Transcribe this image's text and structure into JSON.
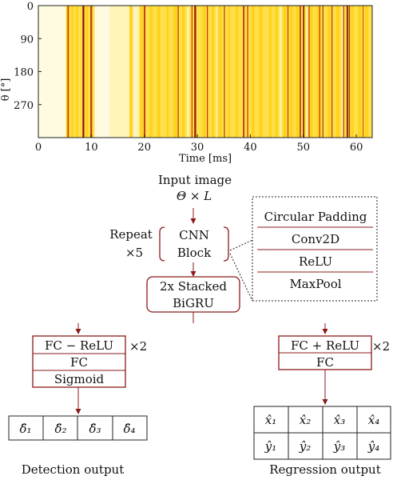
{
  "heatmap": {
    "y_axis_label": "θ [°]",
    "y_ticks": [
      "0",
      "90",
      "180",
      "270"
    ],
    "x_ticks": [
      "0",
      "10",
      "20",
      "30",
      "40",
      "50",
      "60"
    ],
    "x_axis_label": "Time [ms]",
    "colors": {
      "base": "#ffe04a",
      "light": "#fffbe0",
      "mid": "#ffd21c",
      "dark": "#c2410c",
      "darkest": "#7a1b0b"
    }
  },
  "input": {
    "title": "Input image",
    "shape": "Θ × L"
  },
  "cnn": {
    "repeat_label": "Repeat",
    "repeat_count": "×5",
    "block_line1": "CNN",
    "block_line2": "Block",
    "layers": [
      "Circular Padding",
      "Conv2D",
      "ReLU",
      "MaxPool"
    ]
  },
  "gru": {
    "line1": "2x Stacked",
    "line2": "BiGRU"
  },
  "detection_head": {
    "rows": [
      "FC − ReLU",
      "FC",
      "Sigmoid"
    ],
    "multiplier": "×2",
    "outputs": [
      "δ̂₁",
      "δ̂₂",
      "δ̂₃",
      "δ̂₄"
    ],
    "caption": "Detection output"
  },
  "regression_head": {
    "rows": [
      "FC + ReLU",
      "FC"
    ],
    "multiplier": "×2",
    "outputs_x": [
      "x̂₁",
      "x̂₂",
      "x̂₃",
      "x̂₄"
    ],
    "outputs_y": [
      "ŷ₁",
      "ŷ₂",
      "ŷ₃",
      "ŷ₄"
    ],
    "caption": "Regression output"
  }
}
